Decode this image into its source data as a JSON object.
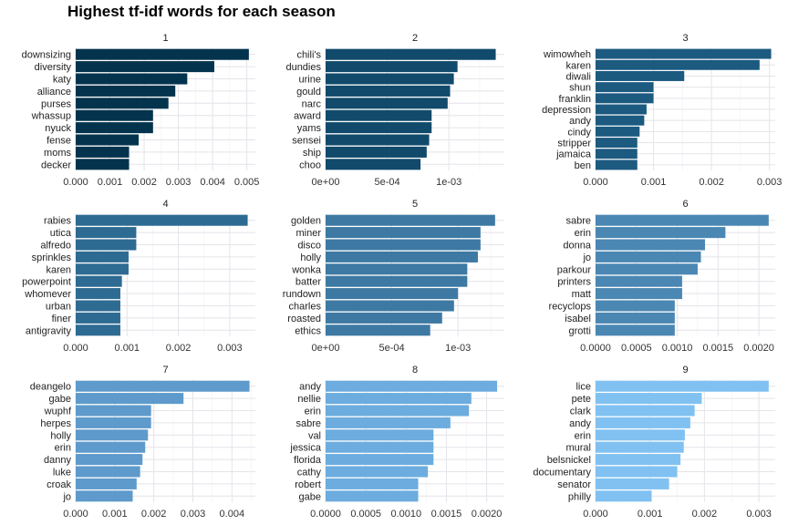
{
  "title": "Highest tf-idf words for each season",
  "chart_data": [
    {
      "type": "bar",
      "orientation": "horizontal",
      "facet": "1",
      "color": "#04344d",
      "categories": [
        "downsizing",
        "diversity",
        "katy",
        "alliance",
        "purses",
        "whassup",
        "nyuck",
        "fense",
        "moms",
        "decker"
      ],
      "values": [
        0.00506,
        0.00405,
        0.00326,
        0.00291,
        0.00271,
        0.00226,
        0.00226,
        0.00184,
        0.00156,
        0.00156
      ],
      "xlim": [
        0,
        0.00525
      ],
      "xticks": [
        0,
        0.001,
        0.002,
        0.003,
        0.004,
        0.005
      ],
      "xtick_labels": [
        "0.000",
        "0.001",
        "0.002",
        "0.003",
        "0.004",
        "0.005"
      ]
    },
    {
      "type": "bar",
      "orientation": "horizontal",
      "facet": "2",
      "color": "#114a6b",
      "categories": [
        "chili's",
        "dundies",
        "urine",
        "gould",
        "narc",
        "award",
        "yams",
        "sensei",
        "ship",
        "choo"
      ],
      "values": [
        0.00138,
        0.00107,
        0.00104,
        0.00101,
        0.00099,
        0.00086,
        0.00086,
        0.00084,
        0.00082,
        0.00077
      ],
      "xlim": [
        0,
        0.00145
      ],
      "xticks": [
        0,
        0.0005,
        0.001
      ],
      "xtick_labels": [
        "0e+00",
        "5e-04",
        "1e-03"
      ]
    },
    {
      "type": "bar",
      "orientation": "horizontal",
      "facet": "3",
      "color": "#1c5a80",
      "categories": [
        "wimowheh",
        "karen",
        "diwali",
        "shun",
        "franklin",
        "depression",
        "andy",
        "cindy",
        "stripper",
        "jamaica",
        "ben"
      ],
      "values": [
        0.00303,
        0.00283,
        0.00153,
        0.001,
        0.001,
        0.00088,
        0.00084,
        0.00076,
        0.00072,
        0.00072,
        0.00072
      ],
      "xlim": [
        0,
        0.0031
      ],
      "xticks": [
        0,
        0.001,
        0.002,
        0.003
      ],
      "xtick_labels": [
        "0.000",
        "0.001",
        "0.002",
        "0.003"
      ]
    },
    {
      "type": "bar",
      "orientation": "horizontal",
      "facet": "4",
      "color": "#2e6b93",
      "categories": [
        "rabies",
        "utica",
        "alfredo",
        "sprinkles",
        "karen",
        "powerpoint",
        "whomever",
        "urban",
        "finer",
        "antigravity"
      ],
      "values": [
        0.00335,
        0.00118,
        0.00118,
        0.00103,
        0.00103,
        0.0009,
        0.00087,
        0.00087,
        0.00087,
        0.00087
      ],
      "xlim": [
        0,
        0.0035
      ],
      "xticks": [
        0,
        0.001,
        0.002,
        0.003
      ],
      "xtick_labels": [
        "0.000",
        "0.001",
        "0.002",
        "0.003"
      ]
    },
    {
      "type": "bar",
      "orientation": "horizontal",
      "facet": "5",
      "color": "#3d79a3",
      "categories": [
        "golden",
        "miner",
        "disco",
        "holly",
        "wonka",
        "batter",
        "rundown",
        "charles",
        "roasted",
        "ethics"
      ],
      "values": [
        0.00128,
        0.00117,
        0.00117,
        0.00115,
        0.00107,
        0.00107,
        0.001,
        0.00097,
        0.00088,
        0.00079
      ],
      "xlim": [
        0,
        0.00135
      ],
      "xticks": [
        0,
        0.0005,
        0.001
      ],
      "xtick_labels": [
        "0e+00",
        "5e-04",
        "1e-03"
      ]
    },
    {
      "type": "bar",
      "orientation": "horizontal",
      "facet": "6",
      "color": "#4b87b3",
      "categories": [
        "sabre",
        "erin",
        "donna",
        "jo",
        "parkour",
        "printers",
        "matt",
        "recyclops",
        "isabel",
        "grotti"
      ],
      "values": [
        0.00212,
        0.00159,
        0.00134,
        0.00129,
        0.00125,
        0.00106,
        0.00106,
        0.00097,
        0.00097,
        0.00097
      ],
      "xlim": [
        0,
        0.0022
      ],
      "xticks": [
        0,
        0.0005,
        0.001,
        0.0015,
        0.002
      ],
      "xtick_labels": [
        "0.0000",
        "0.0005",
        "0.0010",
        "0.0015",
        "0.0020"
      ]
    },
    {
      "type": "bar",
      "orientation": "horizontal",
      "facet": "7",
      "color": "#5e9acb",
      "categories": [
        "deangelo",
        "gabe",
        "wuphf",
        "herpes",
        "holly",
        "erin",
        "danny",
        "luke",
        "croak",
        "jo"
      ],
      "values": [
        0.00445,
        0.00276,
        0.00193,
        0.00193,
        0.00185,
        0.00178,
        0.00171,
        0.00165,
        0.00156,
        0.00146
      ],
      "xlim": [
        0,
        0.0046
      ],
      "xticks": [
        0,
        0.001,
        0.002,
        0.003,
        0.004
      ],
      "xtick_labels": [
        "0.000",
        "0.001",
        "0.002",
        "0.003",
        "0.004"
      ]
    },
    {
      "type": "bar",
      "orientation": "horizontal",
      "facet": "8",
      "color": "#6cacde",
      "categories": [
        "andy",
        "nellie",
        "erin",
        "sabre",
        "val",
        "jessica",
        "florida",
        "cathy",
        "robert",
        "gabe"
      ],
      "values": [
        0.00213,
        0.00181,
        0.00178,
        0.00155,
        0.00134,
        0.00134,
        0.00134,
        0.00127,
        0.00115,
        0.00115
      ],
      "xlim": [
        0,
        0.00222
      ],
      "xticks": [
        0,
        0.0005,
        0.001,
        0.0015,
        0.002
      ],
      "xtick_labels": [
        "0.0000",
        "0.0005",
        "0.0010",
        "0.0015",
        "0.0020"
      ]
    },
    {
      "type": "bar",
      "orientation": "horizontal",
      "facet": "9",
      "color": "#80c1f2",
      "categories": [
        "lice",
        "pete",
        "clark",
        "andy",
        "erin",
        "mural",
        "belsnickel",
        "documentary",
        "senator",
        "philly"
      ],
      "values": [
        0.00318,
        0.00195,
        0.00182,
        0.00174,
        0.00164,
        0.00162,
        0.00156,
        0.0015,
        0.00135,
        0.00103
      ],
      "xlim": [
        0,
        0.0033
      ],
      "xticks": [
        0,
        0.001,
        0.002,
        0.003
      ],
      "xtick_labels": [
        "0.000",
        "0.001",
        "0.002",
        "0.003"
      ]
    }
  ]
}
